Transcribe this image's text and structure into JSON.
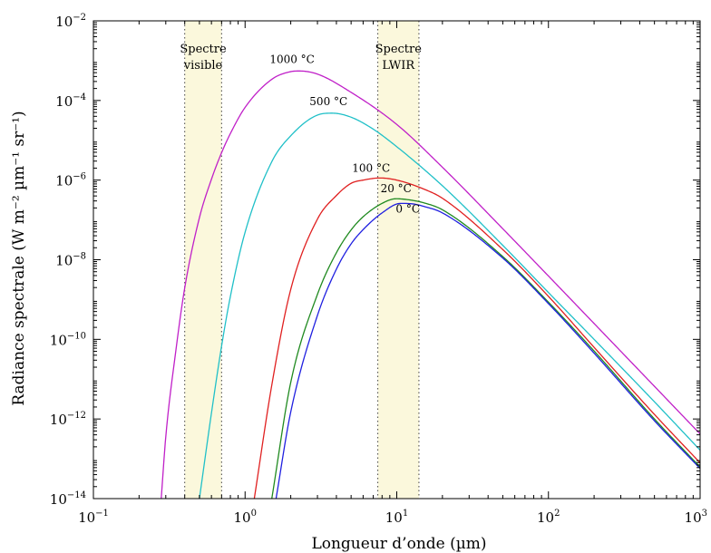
{
  "chart_data": {
    "type": "line",
    "title": "",
    "xlabel": "Longueur d’onde (µm)",
    "ylabel": "Radiance spectrale (W m⁻² µm⁻¹ sr⁻¹)",
    "xscale": "log",
    "yscale": "log",
    "xlim": [
      0.1,
      1000
    ],
    "ylim": [
      1e-14,
      0.01
    ],
    "grid": false,
    "legend": "none",
    "x_ticks": [
      {
        "base": "10",
        "exp": "−1",
        "value": 0.1
      },
      {
        "base": "10",
        "exp": "0",
        "value": 1
      },
      {
        "base": "10",
        "exp": "1",
        "value": 10
      },
      {
        "base": "10",
        "exp": "2",
        "value": 100
      },
      {
        "base": "10",
        "exp": "3",
        "value": 1000
      }
    ],
    "y_ticks": [
      {
        "base": "10",
        "exp": "−2",
        "value": 0.01
      },
      {
        "base": "10",
        "exp": "−4",
        "value": 0.0001
      },
      {
        "base": "10",
        "exp": "−6",
        "value": 1e-06
      },
      {
        "base": "10",
        "exp": "−8",
        "value": 1e-08
      },
      {
        "base": "10",
        "exp": "−10",
        "value": 1e-10
      },
      {
        "base": "10",
        "exp": "−12",
        "value": 1e-12
      },
      {
        "base": "10",
        "exp": "−14",
        "value": 1e-14
      }
    ],
    "bands": [
      {
        "label_lines": [
          "Spectre",
          "visible"
        ],
        "x_range": [
          0.4,
          0.7
        ],
        "color": "#fbf8dc"
      },
      {
        "label_lines": [
          "Spectre",
          "LWIR"
        ],
        "x_range": [
          7.5,
          14
        ],
        "color": "#fbf8dc"
      }
    ],
    "series": [
      {
        "label": "1000 °C",
        "temperature_c": 1000,
        "color": "#c020c8",
        "peak": {
          "x": 2.28,
          "y": 0.00055
        },
        "x": [
          0.28,
          0.3,
          0.35,
          0.4,
          0.5,
          0.6,
          0.7,
          0.8,
          1,
          1.5,
          2,
          2.28,
          3,
          5,
          10,
          20,
          50,
          100,
          200,
          500,
          1000
        ],
        "y": [
          1e-14,
          3.6e-13,
          5.4e-11,
          1.97e-09,
          1.14e-07,
          1.05e-06,
          4.89e-06,
          1.48e-05,
          6.7e-05,
          0.00034,
          0.00053,
          0.00055,
          0.00046,
          0.00016,
          2.5e-05,
          2.1e-06,
          6e-08,
          3.9e-09,
          2.5e-10,
          6.6e-12,
          4.2e-13
        ]
      },
      {
        "label": "500 °C",
        "temperature_c": 500,
        "color": "#20c0c8",
        "peak": {
          "x": 3.75,
          "y": 4.8e-05
        },
        "x": [
          0.5,
          0.6,
          0.7,
          0.8,
          1,
          1.5,
          2,
          3,
          3.75,
          5,
          7,
          10,
          20,
          50,
          100,
          200,
          500,
          1000
        ],
        "y": [
          1e-14,
          1.4e-12,
          6.8e-11,
          1.2e-09,
          4.9e-08,
          2.9e-06,
          1.3e-05,
          4.3e-05,
          4.8e-05,
          3.8e-05,
          1.9e-05,
          6.9e-06,
          7.2e-07,
          2.3e-08,
          1.5e-09,
          1e-10,
          2.7e-12,
          1.65e-13
        ]
      },
      {
        "label": "100 °C",
        "temperature_c": 100,
        "color": "#e02020",
        "peak": {
          "x": 7.77,
          "y": 1.13e-06
        },
        "x": [
          1.15,
          1.5,
          2,
          3,
          4,
          5,
          6,
          7.77,
          10,
          15,
          20,
          50,
          100,
          200,
          500,
          1000
        ],
        "y": [
          1e-14,
          7.1e-12,
          1.8e-09,
          1.05e-07,
          4.1e-07,
          8.3e-07,
          1e-06,
          1.13e-06,
          1e-06,
          6e-07,
          3.5e-07,
          1.8e-08,
          1.2e-09,
          6.3e-11,
          1.3e-12,
          7.9e-14
        ]
      },
      {
        "label": "20 °C",
        "temperature_c": 20,
        "color": "#208a20",
        "peak": {
          "x": 9.89,
          "y": 3.4e-07
        },
        "x": [
          1.5,
          2,
          3,
          4,
          5,
          6,
          8,
          9.89,
          12,
          15,
          20,
          50,
          100,
          200,
          500,
          1000
        ],
        "y": [
          1e-14,
          8.3e-12,
          1.35e-09,
          1.5e-08,
          5.6e-08,
          1.2e-07,
          2.6e-07,
          3.4e-07,
          3.2e-07,
          2.7e-07,
          1.8e-07,
          1.2e-08,
          8.6e-10,
          5.1e-11,
          1e-12,
          6.2e-14
        ]
      },
      {
        "label": "0 °C",
        "temperature_c": 0,
        "color": "#2020e0",
        "peak": {
          "x": 10.6,
          "y": 2.6e-07
        },
        "x": [
          1.6,
          2,
          3,
          4,
          5,
          6,
          8,
          10.6,
          13,
          15,
          20,
          50,
          100,
          200,
          500,
          1000
        ],
        "y": [
          1e-14,
          1.5e-12,
          4e-10,
          5.8e-09,
          2.5e-08,
          5.7e-08,
          1.5e-07,
          2.6e-07,
          2.5e-07,
          2.2e-07,
          1.5e-07,
          1.1e-08,
          7.9e-10,
          4.5e-11,
          9e-13,
          5.7e-14
        ]
      }
    ]
  }
}
